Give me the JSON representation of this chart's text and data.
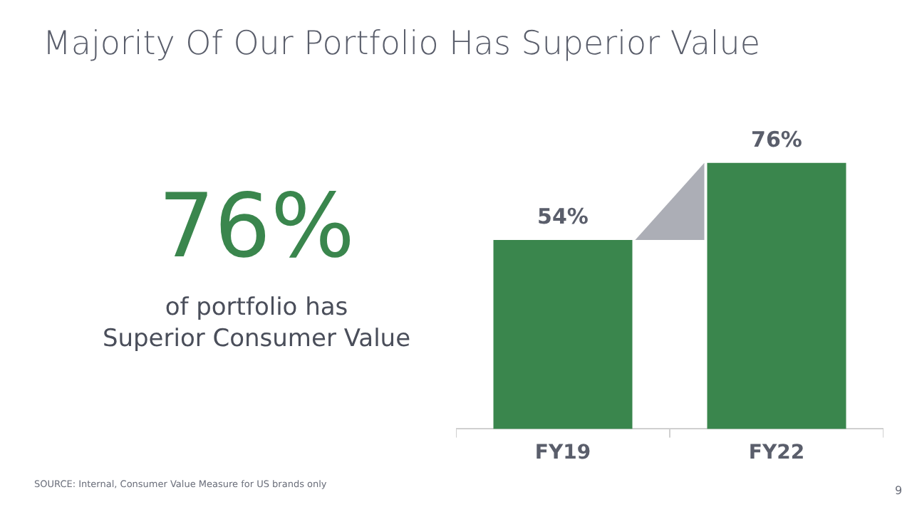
{
  "chart_data": {
    "type": "bar",
    "title": "Majority Of Our Portfolio Has Superior Value",
    "categories": [
      "FY19",
      "FY22"
    ],
    "values": [
      54,
      76
    ],
    "color": "#3a864d",
    "value_labels": [
      "54%",
      "76%"
    ],
    "annotations": [
      "76%",
      "of portfolio has\nSuperior Consumer Value",
      "SOURCE: Internal, Consumer Value Measure for US brands only",
      "9"
    ]
  }
}
